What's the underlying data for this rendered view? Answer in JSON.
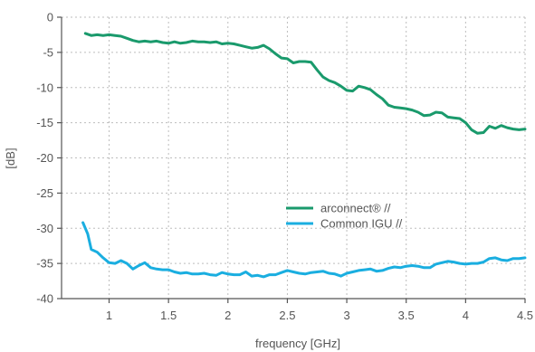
{
  "chart_data": {
    "type": "line",
    "xlabel": "frequency [GHz]",
    "ylabel": "[dB]",
    "xlim": [
      0.6,
      4.5
    ],
    "ylim": [
      -40,
      0
    ],
    "xticks": [
      1,
      1.5,
      2,
      2.5,
      3,
      3.5,
      4,
      4.5
    ],
    "xtick_labels": [
      "1",
      "1.5",
      "2",
      "2.5",
      "3",
      "3.5",
      "4",
      "4.5"
    ],
    "yticks": [
      0,
      -5,
      -10,
      -15,
      -20,
      -25,
      -30,
      -35,
      -40
    ],
    "ytick_labels": [
      "0",
      "-5",
      "-10",
      "-15",
      "-20",
      "-25",
      "-30",
      "-35",
      "-40"
    ],
    "grid": true,
    "legend_position": "center-right",
    "series": [
      {
        "name": "arconnect® //",
        "color": "#1a9a6c",
        "x": [
          0.8,
          0.85,
          0.9,
          0.95,
          1.0,
          1.05,
          1.1,
          1.15,
          1.2,
          1.25,
          1.3,
          1.35,
          1.4,
          1.45,
          1.5,
          1.55,
          1.6,
          1.65,
          1.7,
          1.75,
          1.8,
          1.85,
          1.9,
          1.95,
          2.0,
          2.05,
          2.1,
          2.15,
          2.2,
          2.25,
          2.3,
          2.35,
          2.4,
          2.45,
          2.5,
          2.55,
          2.6,
          2.65,
          2.7,
          2.75,
          2.8,
          2.85,
          2.9,
          2.95,
          3.0,
          3.05,
          3.1,
          3.15,
          3.2,
          3.25,
          3.3,
          3.35,
          3.4,
          3.45,
          3.5,
          3.55,
          3.6,
          3.65,
          3.7,
          3.75,
          3.8,
          3.85,
          3.9,
          3.95,
          4.0,
          4.05,
          4.1,
          4.15,
          4.2,
          4.25,
          4.3,
          4.35,
          4.4,
          4.45,
          4.5
        ],
        "y": [
          -2.3,
          -2.6,
          -2.5,
          -2.6,
          -2.5,
          -2.6,
          -2.7,
          -3.0,
          -3.3,
          -3.5,
          -3.4,
          -3.5,
          -3.4,
          -3.6,
          -3.7,
          -3.5,
          -3.7,
          -3.6,
          -3.4,
          -3.5,
          -3.5,
          -3.6,
          -3.5,
          -3.8,
          -3.7,
          -3.8,
          -4.0,
          -4.2,
          -4.4,
          -4.3,
          -4.0,
          -4.5,
          -5.2,
          -5.8,
          -5.9,
          -6.5,
          -6.3,
          -6.3,
          -6.4,
          -7.5,
          -8.5,
          -9.0,
          -9.3,
          -9.8,
          -10.4,
          -10.5,
          -9.8,
          -10.0,
          -10.3,
          -11.0,
          -11.6,
          -12.5,
          -12.8,
          -12.9,
          -13.0,
          -13.2,
          -13.5,
          -14.0,
          -13.9,
          -13.5,
          -13.6,
          -14.2,
          -14.3,
          -14.4,
          -15.0,
          -16.0,
          -16.5,
          -16.4,
          -15.5,
          -15.8,
          -15.4,
          -15.7,
          -15.9,
          -16.0,
          -15.9
        ]
      },
      {
        "name": "Common IGU //",
        "color": "#1aaee0",
        "x": [
          0.78,
          0.82,
          0.85,
          0.9,
          0.95,
          1.0,
          1.05,
          1.1,
          1.15,
          1.2,
          1.25,
          1.3,
          1.35,
          1.4,
          1.45,
          1.5,
          1.55,
          1.6,
          1.65,
          1.7,
          1.75,
          1.8,
          1.85,
          1.9,
          1.95,
          2.0,
          2.05,
          2.1,
          2.15,
          2.2,
          2.25,
          2.3,
          2.35,
          2.4,
          2.45,
          2.5,
          2.55,
          2.6,
          2.65,
          2.7,
          2.75,
          2.8,
          2.85,
          2.9,
          2.95,
          3.0,
          3.05,
          3.1,
          3.15,
          3.2,
          3.25,
          3.3,
          3.35,
          3.4,
          3.45,
          3.5,
          3.55,
          3.6,
          3.65,
          3.7,
          3.75,
          3.8,
          3.85,
          3.9,
          3.95,
          4.0,
          4.05,
          4.1,
          4.15,
          4.2,
          4.25,
          4.3,
          4.35,
          4.4,
          4.45,
          4.5
        ],
        "y": [
          -29.2,
          -30.8,
          -33.0,
          -33.4,
          -34.2,
          -34.9,
          -35.0,
          -34.6,
          -35.0,
          -35.8,
          -35.3,
          -34.9,
          -35.6,
          -35.8,
          -35.9,
          -35.9,
          -36.2,
          -36.4,
          -36.3,
          -36.5,
          -36.5,
          -36.4,
          -36.6,
          -36.7,
          -36.3,
          -36.5,
          -36.6,
          -36.6,
          -36.2,
          -36.8,
          -36.7,
          -36.9,
          -36.6,
          -36.6,
          -36.3,
          -36.0,
          -36.2,
          -36.4,
          -36.5,
          -36.3,
          -36.2,
          -36.1,
          -36.4,
          -36.5,
          -36.8,
          -36.4,
          -36.2,
          -36.0,
          -35.9,
          -35.8,
          -36.1,
          -36.0,
          -35.7,
          -35.5,
          -35.6,
          -35.4,
          -35.3,
          -35.4,
          -35.6,
          -35.6,
          -35.1,
          -34.9,
          -34.7,
          -34.8,
          -35.0,
          -35.1,
          -35.0,
          -35.0,
          -34.8,
          -34.3,
          -34.2,
          -34.5,
          -34.6,
          -34.3,
          -34.3,
          -34.2
        ]
      }
    ]
  }
}
